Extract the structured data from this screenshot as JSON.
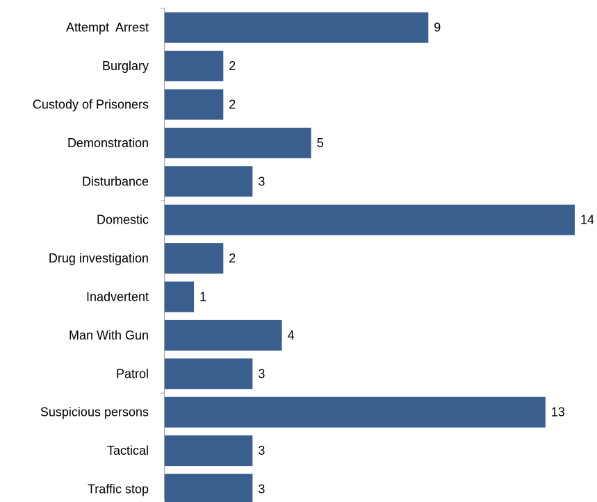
{
  "chart_data": {
    "type": "bar",
    "orientation": "horizontal",
    "title": "",
    "xlabel": "",
    "ylabel": "",
    "categories": [
      "Attempt  Arrest",
      "Burglary",
      "Custody of Prisoners",
      "Demonstration",
      "Disturbance",
      "Domestic",
      "Drug investigation",
      "Inadvertent",
      "Man With Gun",
      "Patrol",
      "Suspicious persons",
      "Tactical",
      "Traffic stop"
    ],
    "values": [
      9,
      2,
      2,
      5,
      3,
      14,
      2,
      1,
      4,
      3,
      13,
      3,
      3
    ],
    "xlim": [
      0,
      14
    ],
    "grid": false,
    "legend": "none",
    "data_labels": true,
    "bar_color": "#3a5f8f"
  }
}
